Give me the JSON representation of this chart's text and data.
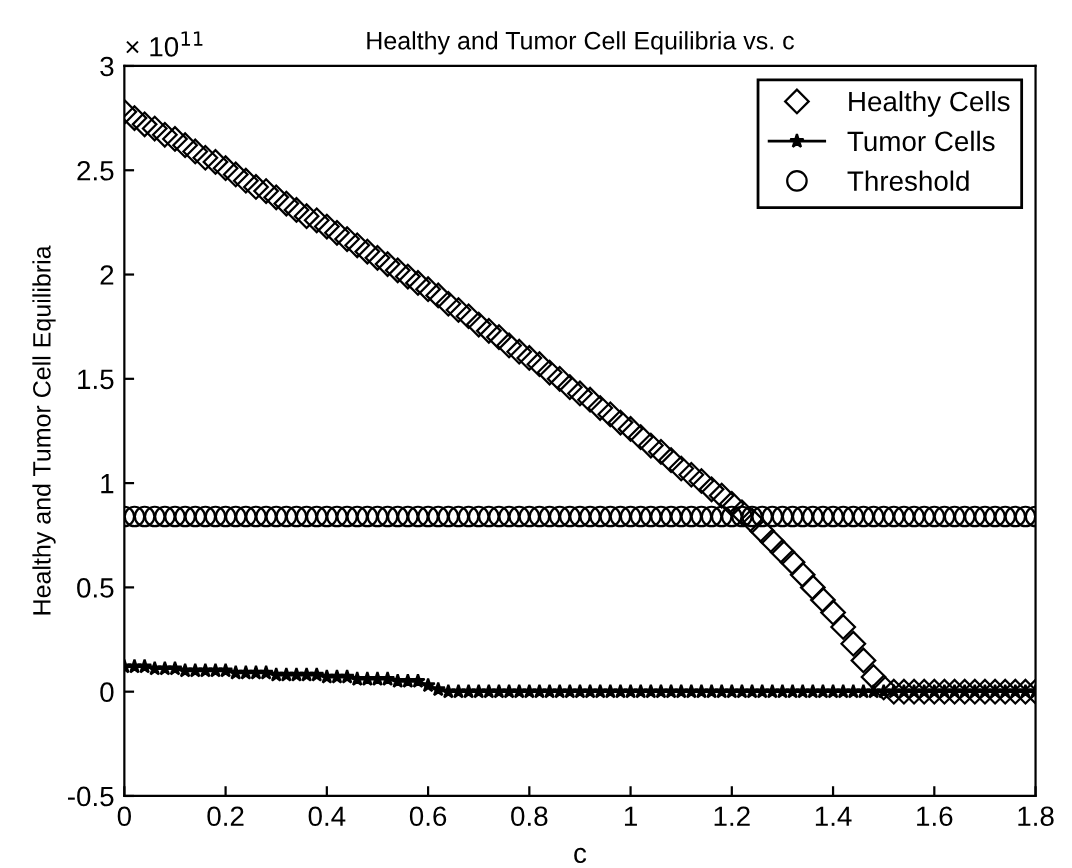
{
  "chart_data": {
    "type": "scatter",
    "title": "Healthy and Tumor Cell Equilibria vs. c",
    "xlabel": "c",
    "ylabel": "Healthy and Tumor Cell Equilibria",
    "annotations": [
      "× 10$^{11}$"
    ],
    "x": [
      0,
      0.02,
      0.04,
      0.06,
      0.08,
      0.1,
      0.12,
      0.14,
      0.16,
      0.18,
      0.2,
      0.22,
      0.24,
      0.26,
      0.28,
      0.3,
      0.32,
      0.34,
      0.36,
      0.38,
      0.4,
      0.42,
      0.44,
      0.46,
      0.48,
      0.5,
      0.52,
      0.54,
      0.56,
      0.58,
      0.6,
      0.62,
      0.64,
      0.66,
      0.68,
      0.7,
      0.72,
      0.74,
      0.76,
      0.78,
      0.8,
      0.82,
      0.84,
      0.86,
      0.88,
      0.9,
      0.92,
      0.94,
      0.96,
      0.98,
      1.0,
      1.02,
      1.04,
      1.06,
      1.08,
      1.1,
      1.12,
      1.14,
      1.16,
      1.18,
      1.2,
      1.22,
      1.24,
      1.26,
      1.28,
      1.3,
      1.32,
      1.34,
      1.36,
      1.38,
      1.4,
      1.42,
      1.44,
      1.46,
      1.48,
      1.5,
      1.52,
      1.54,
      1.56,
      1.58,
      1.6,
      1.62,
      1.64,
      1.66,
      1.68,
      1.7,
      1.72,
      1.74,
      1.76,
      1.78,
      1.8
    ],
    "series": [
      {
        "name": "Healthy Cells",
        "color": "#000000",
        "marker": "diamond",
        "line_style": "none",
        "values": [
          2.78,
          2.75,
          2.72,
          2.7,
          2.67,
          2.65,
          2.62,
          2.59,
          2.56,
          2.54,
          2.51,
          2.48,
          2.45,
          2.42,
          2.4,
          2.37,
          2.34,
          2.31,
          2.28,
          2.26,
          2.23,
          2.2,
          2.17,
          2.14,
          2.11,
          2.08,
          2.05,
          2.02,
          1.99,
          1.96,
          1.93,
          1.9,
          1.86,
          1.83,
          1.8,
          1.76,
          1.73,
          1.7,
          1.66,
          1.63,
          1.6,
          1.57,
          1.53,
          1.5,
          1.46,
          1.43,
          1.4,
          1.36,
          1.33,
          1.29,
          1.26,
          1.22,
          1.18,
          1.15,
          1.11,
          1.07,
          1.04,
          1.01,
          0.97,
          0.94,
          0.9,
          0.86,
          0.82,
          0.77,
          0.72,
          0.67,
          0.62,
          0.56,
          0.5,
          0.44,
          0.38,
          0.31,
          0.23,
          0.15,
          0.07,
          0.02,
          0,
          0,
          0,
          0,
          0,
          0,
          0,
          0,
          0,
          0,
          0,
          0,
          0,
          0,
          0
        ]
      },
      {
        "name": "Tumor Cells",
        "type": "line",
        "color": "#000000",
        "marker": "star",
        "line_style": "solid",
        "values": [
          0.12,
          0.12,
          0.12,
          0.11,
          0.11,
          0.11,
          0.1,
          0.1,
          0.1,
          0.1,
          0.1,
          0.09,
          0.09,
          0.09,
          0.09,
          0.08,
          0.08,
          0.08,
          0.08,
          0.08,
          0.07,
          0.07,
          0.07,
          0.06,
          0.06,
          0.06,
          0.06,
          0.05,
          0.05,
          0.05,
          0.03,
          0.01,
          0,
          0,
          0,
          0,
          0,
          0,
          0,
          0,
          0,
          0,
          0,
          0,
          0,
          0,
          0,
          0,
          0,
          0,
          0,
          0,
          0,
          0,
          0,
          0,
          0,
          0,
          0,
          0,
          0,
          0,
          0,
          0,
          0,
          0,
          0,
          0,
          0,
          0,
          0,
          0,
          0,
          0,
          0,
          0,
          0,
          0,
          0,
          0,
          0,
          0,
          0,
          0,
          0,
          0,
          0,
          0,
          0,
          0,
          0
        ]
      },
      {
        "name": "Threshold",
        "color": "#000000",
        "marker": "circle",
        "line_style": "none",
        "values": [
          0.84,
          0.84,
          0.84,
          0.84,
          0.84,
          0.84,
          0.84,
          0.84,
          0.84,
          0.84,
          0.84,
          0.84,
          0.84,
          0.84,
          0.84,
          0.84,
          0.84,
          0.84,
          0.84,
          0.84,
          0.84,
          0.84,
          0.84,
          0.84,
          0.84,
          0.84,
          0.84,
          0.84,
          0.84,
          0.84,
          0.84,
          0.84,
          0.84,
          0.84,
          0.84,
          0.84,
          0.84,
          0.84,
          0.84,
          0.84,
          0.84,
          0.84,
          0.84,
          0.84,
          0.84,
          0.84,
          0.84,
          0.84,
          0.84,
          0.84,
          0.84,
          0.84,
          0.84,
          0.84,
          0.84,
          0.84,
          0.84,
          0.84,
          0.84,
          0.84,
          0.84,
          0.84,
          0.84,
          0.84,
          0.84,
          0.84,
          0.84,
          0.84,
          0.84,
          0.84,
          0.84,
          0.84,
          0.84,
          0.84,
          0.84,
          0.84,
          0.84,
          0.84,
          0.84,
          0.84,
          0.84,
          0.84,
          0.84,
          0.84,
          0.84,
          0.84,
          0.84,
          0.84,
          0.84,
          0.84,
          0.84
        ]
      }
    ],
    "xlim": [
      0,
      1.8
    ],
    "xticks": [
      0,
      0.2,
      0.4,
      0.6,
      0.8,
      1,
      1.2,
      1.4,
      1.6,
      1.8
    ],
    "ylim": [
      -0.5,
      3
    ],
    "yticks": [
      -0.5,
      0,
      0.5,
      1,
      1.5,
      2,
      2.5,
      3
    ],
    "legend": "top right",
    "grid": false
  }
}
